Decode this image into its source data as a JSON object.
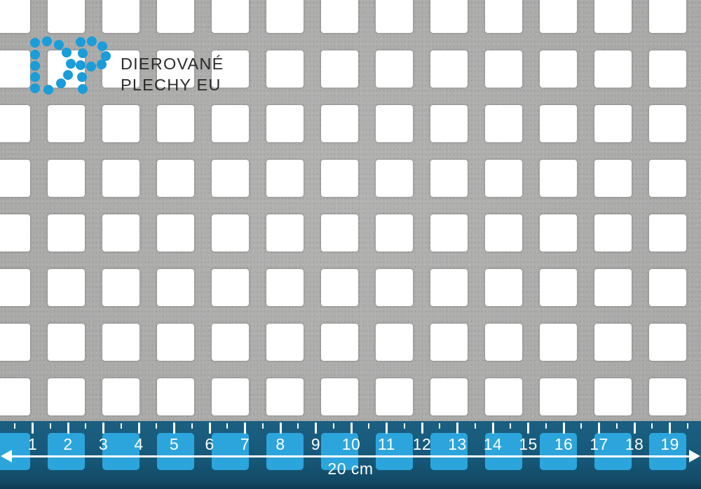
{
  "brand": {
    "line1": "DIEROVANÉ",
    "line2": "PLECHY EU",
    "logo_color": "#1a9dd9",
    "text_color": "#2b2b2b"
  },
  "sheet": {
    "metal_color": "#afafae",
    "hole_color": "#ffffff"
  },
  "ruler": {
    "unit_labels": [
      "1",
      "2",
      "3",
      "4",
      "5",
      "6",
      "7",
      "8",
      "9",
      "10",
      "11",
      "12",
      "13",
      "14",
      "15",
      "16",
      "17",
      "18",
      "19"
    ],
    "total_label": "20 cm",
    "band_color": "#175878",
    "hole_tint_color": "#2ca5dc",
    "mark_color": "#ffffff"
  }
}
